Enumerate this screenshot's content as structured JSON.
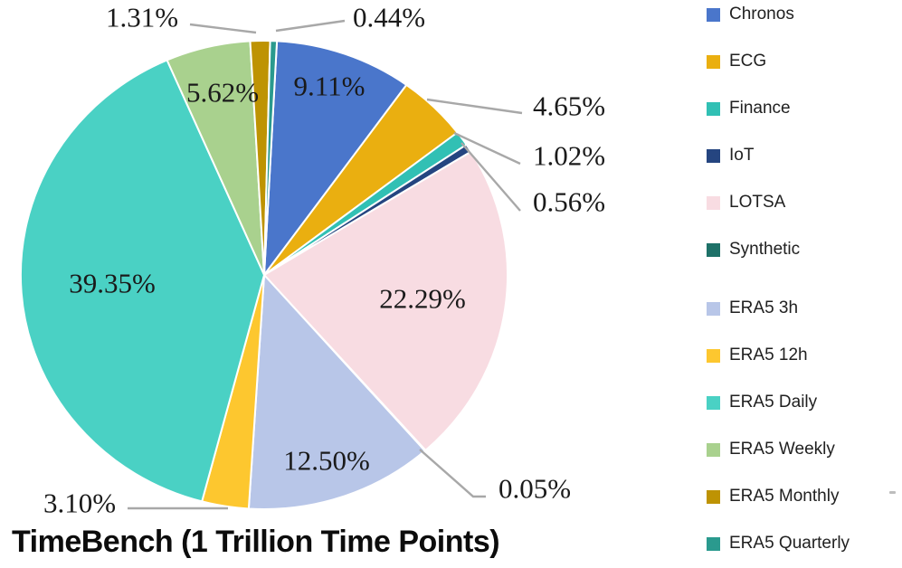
{
  "colors": {
    "leader_line": "#a8a8a8",
    "label_text": "#1a1a1a",
    "title_text": "#0c0c0c",
    "background": "#ffffff"
  },
  "chart_data": {
    "type": "pie",
    "title": "TimeBench (1 Trillion Time Points)",
    "units": "%",
    "direction": "clockwise",
    "start_angle_deg": 3,
    "legend_position": "right",
    "slices": [
      {
        "label": "Chronos",
        "value": 9.11,
        "pct_label": "9.11%",
        "color": "#4a76cb",
        "label_placement": "inside",
        "label_xy": [
          364,
          95
        ]
      },
      {
        "label": "ECG",
        "value": 4.65,
        "pct_label": "4.65%",
        "color": "#eaaf10",
        "label_placement": "leader",
        "label_xy": [
          629,
          117
        ],
        "leader_points": [
          [
            472,
            110
          ],
          [
            577,
            125
          ]
        ]
      },
      {
        "label": "Finance",
        "value": 1.02,
        "pct_label": "1.02%",
        "color": "#31c0b4",
        "label_placement": "leader",
        "label_xy": [
          629,
          172
        ],
        "leader_points": [
          [
            502,
            147
          ],
          [
            575,
            181
          ]
        ]
      },
      {
        "label": "IoT",
        "value": 0.56,
        "pct_label": "0.56%",
        "color": "#254580",
        "label_placement": "leader",
        "label_xy": [
          629,
          223
        ],
        "leader_points": [
          [
            510,
            158
          ],
          [
            575,
            233
          ]
        ]
      },
      {
        "label": "LOTSA",
        "value": 22.29,
        "pct_label": "22.29%",
        "color": "#f8dce2",
        "label_placement": "inside",
        "label_xy": [
          467,
          330
        ]
      },
      {
        "label": "Synthetic",
        "value": 0.05,
        "pct_label": "0.05%",
        "color": "#1e7168",
        "label_placement": "leader",
        "label_xy": [
          591,
          540
        ],
        "leader_points": [
          [
            464,
            497
          ],
          [
            523,
            549
          ],
          [
            537,
            549
          ]
        ]
      },
      {
        "label": "ERA5 3h",
        "value": 12.5,
        "pct_label": "12.50%",
        "color": "#b8c6e8",
        "label_placement": "inside",
        "label_xy": [
          361,
          509
        ]
      },
      {
        "label": "ERA5 12h",
        "value": 3.1,
        "pct_label": "3.10%",
        "color": "#fdc72f",
        "label_placement": "leader",
        "label_xy": [
          88,
          556
        ],
        "leader_points": [
          [
            252,
            562
          ],
          [
            141,
            562
          ]
        ]
      },
      {
        "label": "ERA5 Daily",
        "value": 39.35,
        "pct_label": "39.35%",
        "color": "#4ad1c4",
        "label_placement": "inside",
        "label_xy": [
          124,
          313
        ]
      },
      {
        "label": "ERA5 Weekly",
        "value": 5.62,
        "pct_label": "5.62%",
        "color": "#a9d18e",
        "label_placement": "inside",
        "label_xy": [
          246,
          102
        ]
      },
      {
        "label": "ERA5 Monthly",
        "value": 1.31,
        "pct_label": "1.31%",
        "color": "#be9303",
        "label_placement": "leader",
        "label_xy": [
          157,
          19
        ],
        "leader_points": [
          [
            283,
            36
          ],
          [
            210,
            27
          ]
        ]
      },
      {
        "label": "ERA5 Quarterly",
        "value": 0.44,
        "pct_label": "0.44%",
        "color": "#2a9a8e",
        "label_placement": "leader",
        "label_xy": [
          430,
          19
        ],
        "leader_points": [
          [
            305,
            34
          ],
          [
            381,
            23
          ]
        ]
      }
    ]
  }
}
